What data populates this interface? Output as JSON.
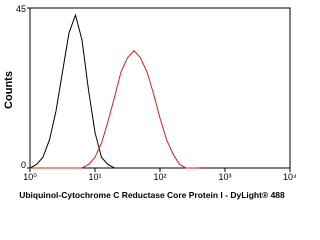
{
  "chart_data": {
    "type": "line",
    "xlabel": "Ubiquinol-Cytochrome C Reductase Core Protein I - DyLight® 488",
    "ylabel": "Counts",
    "xscale": "log",
    "x": [
      1,
      1.26,
      1.58,
      2,
      2.51,
      3.16,
      3.98,
      5.01,
      6.31,
      7.94,
      10,
      12.6,
      15.8,
      20,
      25.1,
      31.6,
      39.8,
      50.1,
      63.1,
      79.4,
      100,
      126,
      158,
      200,
      251,
      316,
      398
    ],
    "series": [
      {
        "color": "#000000",
        "values": [
          0,
          1,
          3,
          8,
          16,
          27,
          38,
          43,
          36,
          22,
          10,
          3,
          1,
          0,
          0,
          0,
          0,
          0,
          0,
          0,
          0,
          0,
          0,
          0,
          0,
          0,
          0
        ]
      },
      {
        "color": "#d42020",
        "values": [
          0,
          0,
          0,
          0,
          0,
          0,
          0,
          0,
          0,
          1,
          3,
          7,
          13,
          20,
          27,
          31,
          33,
          31,
          27,
          21,
          14,
          8,
          4,
          1,
          0,
          0,
          0
        ]
      }
    ],
    "xlim": [
      1,
      10000
    ],
    "xticks": [
      {
        "value": 1,
        "label": "10⁰"
      },
      {
        "value": 10,
        "label": "10¹"
      },
      {
        "value": 100,
        "label": "10²"
      },
      {
        "value": 1000,
        "label": "10³"
      },
      {
        "value": 10000,
        "label": "10⁴"
      }
    ],
    "ylim": [
      0,
      45
    ],
    "yticks": [
      0,
      45
    ]
  }
}
